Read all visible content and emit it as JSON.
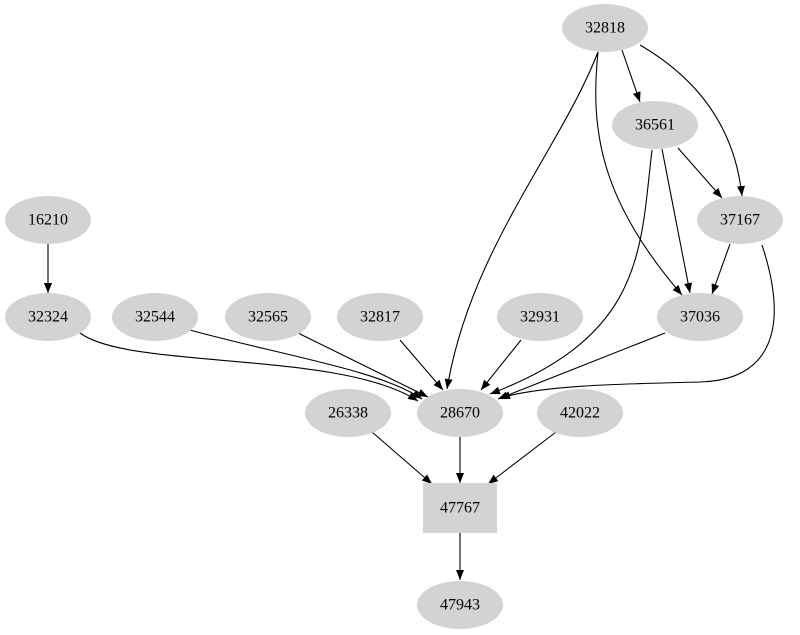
{
  "diagram": {
    "type": "directed-graph",
    "node_fill": "#d3d3d3",
    "edge_color": "#000000",
    "nodes": [
      {
        "id": "32818",
        "label": "32818",
        "shape": "ellipse"
      },
      {
        "id": "36561",
        "label": "36561",
        "shape": "ellipse"
      },
      {
        "id": "37167",
        "label": "37167",
        "shape": "ellipse"
      },
      {
        "id": "37036",
        "label": "37036",
        "shape": "ellipse"
      },
      {
        "id": "16210",
        "label": "16210",
        "shape": "ellipse"
      },
      {
        "id": "32324",
        "label": "32324",
        "shape": "ellipse"
      },
      {
        "id": "32544",
        "label": "32544",
        "shape": "ellipse"
      },
      {
        "id": "32565",
        "label": "32565",
        "shape": "ellipse"
      },
      {
        "id": "32817",
        "label": "32817",
        "shape": "ellipse"
      },
      {
        "id": "32931",
        "label": "32931",
        "shape": "ellipse"
      },
      {
        "id": "28670",
        "label": "28670",
        "shape": "ellipse"
      },
      {
        "id": "26338",
        "label": "26338",
        "shape": "ellipse"
      },
      {
        "id": "42022",
        "label": "42022",
        "shape": "ellipse"
      },
      {
        "id": "47767",
        "label": "47767",
        "shape": "box"
      },
      {
        "id": "47943",
        "label": "47943",
        "shape": "ellipse"
      }
    ],
    "edges": [
      {
        "from": "32818",
        "to": "36561"
      },
      {
        "from": "32818",
        "to": "37167"
      },
      {
        "from": "32818",
        "to": "37036"
      },
      {
        "from": "32818",
        "to": "28670"
      },
      {
        "from": "36561",
        "to": "37167"
      },
      {
        "from": "36561",
        "to": "37036"
      },
      {
        "from": "36561",
        "to": "28670"
      },
      {
        "from": "37167",
        "to": "37036"
      },
      {
        "from": "37167",
        "to": "28670"
      },
      {
        "from": "37036",
        "to": "28670"
      },
      {
        "from": "16210",
        "to": "32324"
      },
      {
        "from": "32324",
        "to": "28670"
      },
      {
        "from": "32544",
        "to": "28670"
      },
      {
        "from": "32565",
        "to": "28670"
      },
      {
        "from": "32817",
        "to": "28670"
      },
      {
        "from": "32931",
        "to": "28670"
      },
      {
        "from": "28670",
        "to": "47767"
      },
      {
        "from": "26338",
        "to": "47767"
      },
      {
        "from": "42022",
        "to": "47767"
      },
      {
        "from": "47767",
        "to": "47943"
      }
    ]
  }
}
